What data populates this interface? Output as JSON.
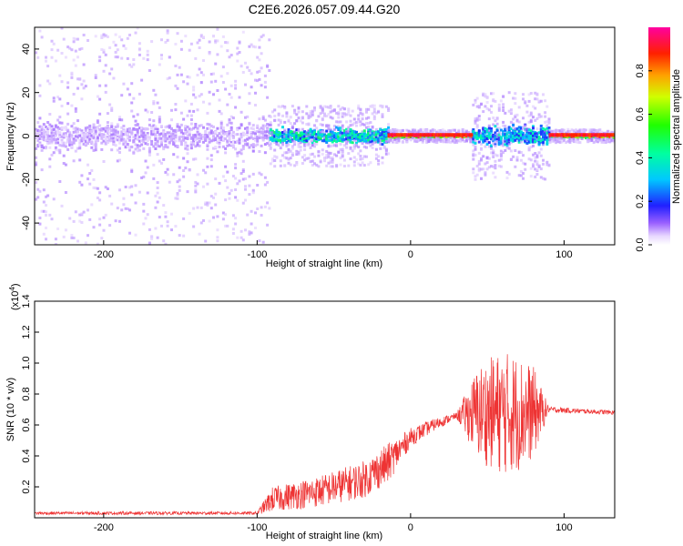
{
  "title": "C2E6.2026.057.09.44.G20",
  "chart_data": [
    {
      "type": "heatmap",
      "xlabel": "Height of straight line (km)",
      "ylabel": "Frequency (Hz)",
      "xlim": [
        -245,
        133
      ],
      "ylim": [
        -50,
        50
      ],
      "xticks": [
        "-200",
        "-100",
        "0",
        "100"
      ],
      "xtick_values": [
        -200,
        -100,
        0,
        100
      ],
      "yticks": [
        "-40",
        "-20",
        "0",
        "20",
        "40"
      ],
      "ytick_values": [
        -40,
        -20,
        0,
        20,
        40
      ],
      "colorbar": {
        "label": "Normalized spectral amplitude",
        "range": [
          0,
          1
        ],
        "ticks": [
          "0.0",
          "0.2",
          "0.4",
          "0.6",
          "0.8"
        ],
        "tick_values": [
          0.0,
          0.2,
          0.4,
          0.6,
          0.8
        ]
      },
      "regions": [
        {
          "x": [
            -245,
            -92
          ],
          "spread_hz": 50,
          "core_hz": 10,
          "amplitude": 0.08
        },
        {
          "x": [
            -92,
            -15
          ],
          "spread_hz": 14,
          "core_hz": 5,
          "amplitude": 0.45
        },
        {
          "x": [
            -15,
            40
          ],
          "spread_hz": 3,
          "core_hz": 1,
          "amplitude": 0.9
        },
        {
          "x": [
            40,
            90
          ],
          "spread_hz": 20,
          "core_hz": 7,
          "amplitude": 0.4
        },
        {
          "x": [
            90,
            133
          ],
          "spread_hz": 3,
          "core_hz": 1,
          "amplitude": 0.95
        }
      ]
    },
    {
      "type": "line",
      "xlabel": "Height of straight line (km)",
      "ylabel": "SNR (10 * v/v)",
      "multiplier": "(x10",
      "multiplier_exp": "4",
      "multiplier_close": ")",
      "xlim": [
        -245,
        133
      ],
      "ylim": [
        0,
        1.4
      ],
      "xticks": [
        "-200",
        "-100",
        "0",
        "100"
      ],
      "xtick_values": [
        -200,
        -100,
        0,
        100
      ],
      "yticks": [
        "0.2",
        "0.4",
        "0.6",
        "0.8",
        "1.0",
        "1.2",
        "1.4"
      ],
      "ytick_values": [
        0.2,
        0.4,
        0.6,
        0.8,
        1.0,
        1.2,
        1.4
      ],
      "color": "#ee3333",
      "series": [
        {
          "x": [
            -245,
            -100,
            -90,
            -60,
            -30,
            -15,
            0,
            15,
            30,
            44,
            50,
            60,
            70,
            80,
            90,
            110,
            133
          ],
          "values": [
            0.03,
            0.03,
            0.12,
            0.17,
            0.25,
            0.35,
            0.52,
            0.6,
            0.66,
            0.68,
            0.68,
            0.68,
            0.68,
            0.68,
            0.7,
            0.69,
            0.68
          ],
          "noise": [
            0.01,
            0.01,
            0.08,
            0.1,
            0.12,
            0.13,
            0.06,
            0.04,
            0.02,
            0.3,
            0.35,
            0.4,
            0.38,
            0.3,
            0.02,
            0.015,
            0.015
          ]
        }
      ]
    }
  ]
}
